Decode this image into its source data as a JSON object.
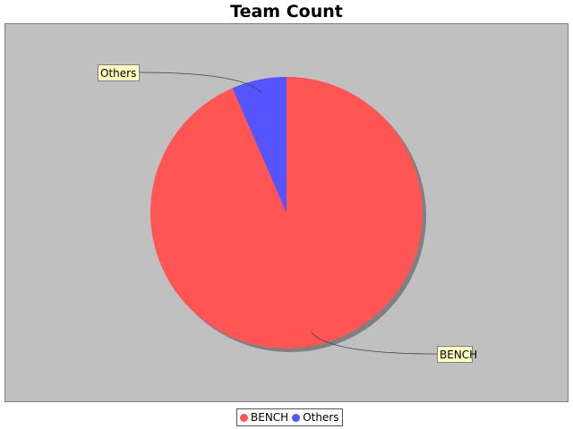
{
  "chart_data": {
    "type": "pie",
    "title": "Team Count",
    "slices": [
      {
        "label": "BENCH",
        "value": 93.5,
        "color": "#ff5555"
      },
      {
        "label": "Others",
        "value": 6.5,
        "color": "#5555ff"
      }
    ],
    "legend": [
      "BENCH",
      "Others"
    ],
    "legend_position": "bottom",
    "plot_background": "#c0c0c0"
  }
}
